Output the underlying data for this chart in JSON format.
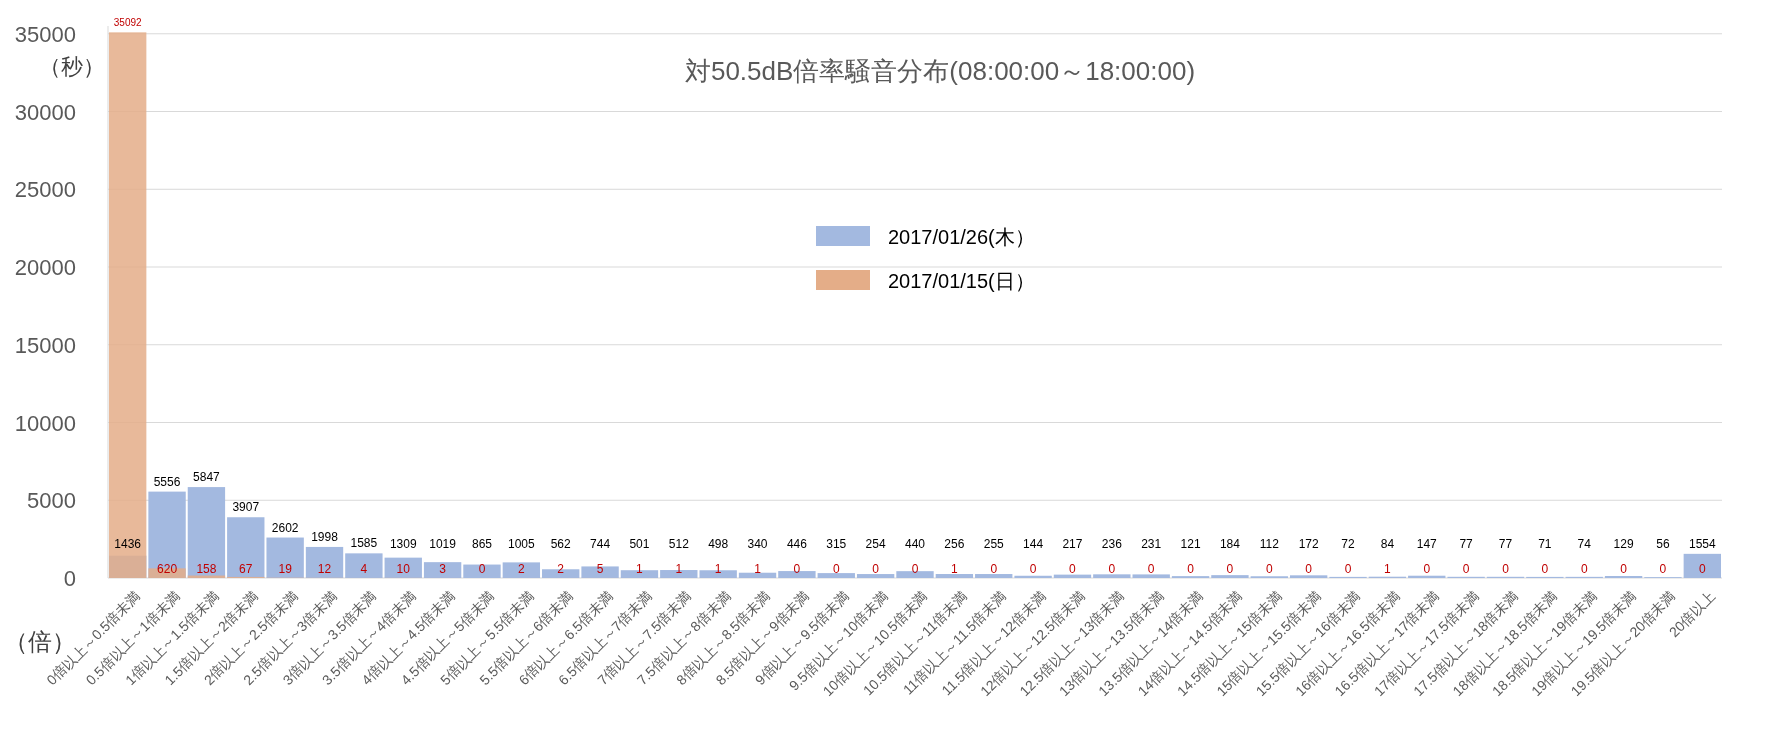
{
  "chart_data": {
    "type": "bar",
    "title": "対50.5dB倍率騒音分布(08:00:00～18:00:00)",
    "ylabel": "（秒）",
    "xlabel": "（倍）",
    "categories": [
      "0倍以上～0.5倍未満",
      "0.5倍以上～1倍未満",
      "1倍以上～1.5倍未満",
      "1.5倍以上～2倍未満",
      "2倍以上～2.5倍未満",
      "2.5倍以上～3倍未満",
      "3倍以上～3.5倍未満",
      "3.5倍以上～4倍未満",
      "4倍以上～4.5倍未満",
      "4.5倍以上～5倍未満",
      "5倍以上～5.5倍未満",
      "5.5倍以上～6倍未満",
      "6倍以上～6.5倍未満",
      "6.5倍以上～7倍未満",
      "7倍以上～7.5倍未満",
      "7.5倍以上～8倍未満",
      "8倍以上～8.5倍未満",
      "8.5倍以上～9倍未満",
      "9倍以上～9.5倍未満",
      "9.5倍以上～10倍未満",
      "10倍以上～10.5倍未満",
      "10.5倍以上～11倍未満",
      "11倍以上～11.5倍未満",
      "11.5倍以上～12倍未満",
      "12倍以上～12.5倍未満",
      "12.5倍以上～13倍未満",
      "13倍以上～13.5倍未満",
      "13.5倍以上～14倍未満",
      "14倍以上～14.5倍未満",
      "14.5倍以上～15倍未満",
      "15倍以上～15.5倍未満",
      "15.5倍以上～16倍未満",
      "16倍以上～16.5倍未満",
      "16.5倍以上～17倍未満",
      "17倍以上～17.5倍未満",
      "17.5倍以上～18倍未満",
      "18倍以上～18.5倍未満",
      "18.5倍以上～19倍未満",
      "19倍以上～19.5倍未満",
      "19.5倍以上～20倍未満",
      "20倍以上"
    ],
    "series": [
      {
        "name": "2017/01/26(木）",
        "color": "#a3b9e0",
        "values": [
          1436,
          5556,
          5847,
          3907,
          2602,
          1998,
          1585,
          1309,
          1019,
          865,
          1005,
          562,
          744,
          501,
          512,
          498,
          340,
          446,
          315,
          254,
          440,
          256,
          255,
          144,
          217,
          236,
          231,
          121,
          184,
          112,
          172,
          72,
          84,
          147,
          77,
          77,
          71,
          74,
          129,
          56,
          1554
        ]
      },
      {
        "name": "2017/01/15(日）",
        "color": "#e4ad88",
        "values": [
          35092,
          620,
          158,
          67,
          19,
          12,
          4,
          10,
          3,
          0,
          2,
          2,
          5,
          1,
          1,
          1,
          1,
          0,
          0,
          0,
          0,
          1,
          0,
          0,
          0,
          0,
          0,
          0,
          0,
          0,
          0,
          0,
          1,
          0,
          0,
          0,
          0,
          0,
          0,
          0,
          0
        ]
      }
    ],
    "ylim": [
      0,
      35500
    ],
    "yticks": [
      0,
      5000,
      10000,
      15000,
      20000,
      25000,
      30000,
      35000
    ],
    "grid": "y",
    "legend": "center",
    "data_labels": true
  }
}
